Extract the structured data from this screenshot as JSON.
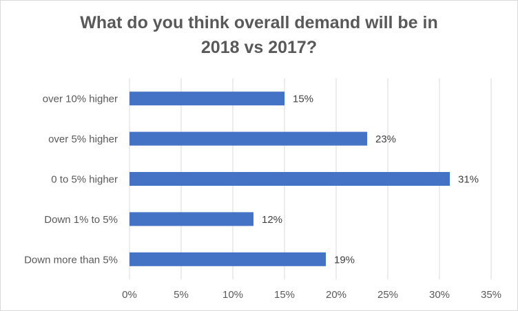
{
  "chart_data": {
    "type": "bar",
    "orientation": "horizontal",
    "title_lines": [
      "What do you think overall demand will be in",
      "2018 vs 2017?"
    ],
    "categories": [
      "over 10% higher",
      "over 5% higher",
      "0 to 5% higher",
      "Down 1% to 5%",
      "Down more than 5%"
    ],
    "values": [
      15,
      23,
      31,
      12,
      19
    ],
    "data_labels": [
      "15%",
      "23%",
      "31%",
      "12%",
      "19%"
    ],
    "xlim": [
      0,
      35
    ],
    "x_ticks": [
      0,
      5,
      10,
      15,
      20,
      25,
      30,
      35
    ],
    "x_tick_labels": [
      "0%",
      "5%",
      "10%",
      "15%",
      "20%",
      "25%",
      "30%",
      "35%"
    ],
    "xlabel": "",
    "ylabel": "",
    "grid": "vertical",
    "legend": "none",
    "bar_color": "#4472c4",
    "grid_color": "#d9d9d9",
    "text_color": "#595959"
  }
}
